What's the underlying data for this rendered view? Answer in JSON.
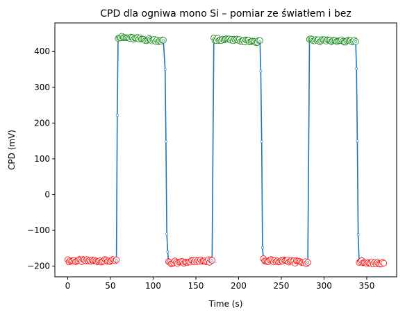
{
  "chart_data": {
    "type": "line",
    "title": "CPD dla ogniwa mono Si – pomiar ze światłem i bez",
    "xlabel": "Time (s)",
    "ylabel": "CPD (mV)",
    "xlim": [
      -15,
      385
    ],
    "ylim": [
      -230,
      480
    ],
    "x_ticks": [
      0,
      50,
      100,
      150,
      200,
      250,
      300,
      350
    ],
    "y_ticks": [
      -200,
      -100,
      0,
      100,
      200,
      300,
      400
    ],
    "grid": false,
    "legend": "none",
    "colors": {
      "line": "#1f77b4",
      "dark_marker": "#ff0000",
      "light_marker": "#008000",
      "marker_fill": "#ffffff"
    },
    "segments": [
      {
        "state": "dark",
        "x_start": 0,
        "x_end": 57,
        "y_start": -185,
        "y_end": -185
      },
      {
        "state": "rise",
        "x": [
          57,
          58,
          59
        ],
        "y": [
          -185,
          222,
          440
        ]
      },
      {
        "state": "light",
        "x_start": 59,
        "x_end": 112,
        "y_start": 440,
        "y_end": 430
      },
      {
        "state": "fall",
        "x": [
          112,
          114,
          115,
          116,
          117,
          118
        ],
        "y": [
          430,
          350,
          148,
          -110,
          -160,
          -185
        ]
      },
      {
        "state": "dark",
        "x_start": 118,
        "x_end": 169,
        "y_start": -190,
        "y_end": -185
      },
      {
        "state": "rise",
        "x": [
          169,
          171
        ],
        "y": [
          -185,
          435
        ]
      },
      {
        "state": "light",
        "x_start": 171,
        "x_end": 225,
        "y_start": 435,
        "y_end": 427
      },
      {
        "state": "fall",
        "x": [
          225,
          226,
          227,
          228,
          229
        ],
        "y": [
          427,
          345,
          148,
          -148,
          -180
        ]
      },
      {
        "state": "dark",
        "x_start": 229,
        "x_end": 281,
        "y_start": -183,
        "y_end": -190
      },
      {
        "state": "rise",
        "x": [
          281,
          283
        ],
        "y": [
          -190,
          432
        ]
      },
      {
        "state": "light",
        "x_start": 283,
        "x_end": 337,
        "y_start": 432,
        "y_end": 428
      },
      {
        "state": "fall",
        "x": [
          337,
          338,
          339,
          340,
          341
        ],
        "y": [
          428,
          352,
          150,
          -112,
          -182
        ]
      },
      {
        "state": "dark",
        "x_start": 341,
        "x_end": 370,
        "y_start": -188,
        "y_end": -192
      }
    ]
  }
}
